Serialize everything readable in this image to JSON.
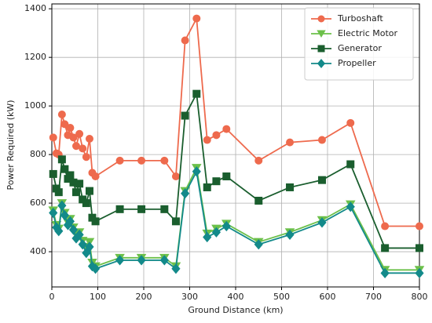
{
  "chart_data": {
    "type": "line",
    "xlabel": "Ground Distance (km)",
    "ylabel": "Power Required (kW)",
    "x": [
      3,
      10,
      15,
      22,
      28,
      35,
      40,
      47,
      53,
      60,
      67,
      75,
      82,
      88,
      95,
      148,
      195,
      245,
      270,
      290,
      315,
      338,
      358,
      380,
      450,
      518,
      588,
      650,
      725,
      800
    ],
    "series": [
      {
        "name": "Turboshaft",
        "color": "#ee6a4d",
        "marker": "circle",
        "values": [
          870,
          805,
          800,
          965,
          925,
          880,
          910,
          870,
          835,
          885,
          825,
          790,
          865,
          725,
          710,
          775,
          775,
          775,
          710,
          1270,
          1360,
          860,
          880,
          905,
          775,
          850,
          860,
          930,
          505,
          505
        ]
      },
      {
        "name": "Electric Motor",
        "color": "#6cc04a",
        "marker": "triangle-down",
        "values": [
          570,
          510,
          495,
          600,
          560,
          520,
          535,
          500,
          470,
          480,
          445,
          420,
          440,
          355,
          340,
          375,
          375,
          375,
          340,
          650,
          745,
          475,
          495,
          515,
          440,
          480,
          530,
          595,
          325,
          325
        ]
      },
      {
        "name": "Generator",
        "color": "#1a5e2e",
        "marker": "square",
        "values": [
          720,
          660,
          645,
          780,
          740,
          700,
          715,
          685,
          645,
          680,
          615,
          600,
          650,
          540,
          525,
          575,
          575,
          575,
          525,
          960,
          1050,
          665,
          690,
          710,
          610,
          665,
          695,
          760,
          415,
          415
        ]
      },
      {
        "name": "Propeller",
        "color": "#138a8a",
        "marker": "diamond",
        "values": [
          560,
          500,
          485,
          590,
          550,
          510,
          525,
          490,
          455,
          470,
          430,
          395,
          420,
          340,
          330,
          365,
          365,
          365,
          330,
          640,
          730,
          460,
          480,
          505,
          430,
          470,
          520,
          585,
          312,
          312
        ]
      }
    ],
    "xlim": [
      0,
      800
    ],
    "xticks": [
      0,
      100,
      200,
      300,
      400,
      500,
      600,
      700,
      800
    ],
    "ylim": [
      255,
      1420
    ],
    "yticks": [
      400,
      600,
      800,
      1000,
      1200,
      1400
    ],
    "grid": true,
    "legend": "upper right"
  }
}
